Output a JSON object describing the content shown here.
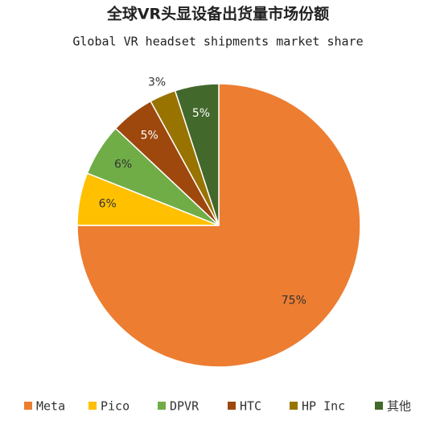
{
  "chart_data": {
    "type": "pie",
    "title": "全球VR头显设备出货量市场份额",
    "subtitle": "Global VR headset shipments market share",
    "categories": [
      "Meta",
      "Pico",
      "DPVR",
      "HTC",
      "HP Inc",
      "其他"
    ],
    "values": [
      75,
      6,
      6,
      5,
      3,
      5
    ],
    "value_labels": [
      "75%",
      "6%",
      "6%",
      "5%",
      "3%",
      "5%"
    ],
    "colors": [
      "#ED7D31",
      "#FFC000",
      "#70AD47",
      "#9E480E",
      "#997300",
      "#43682B"
    ],
    "legend": "bottom"
  }
}
